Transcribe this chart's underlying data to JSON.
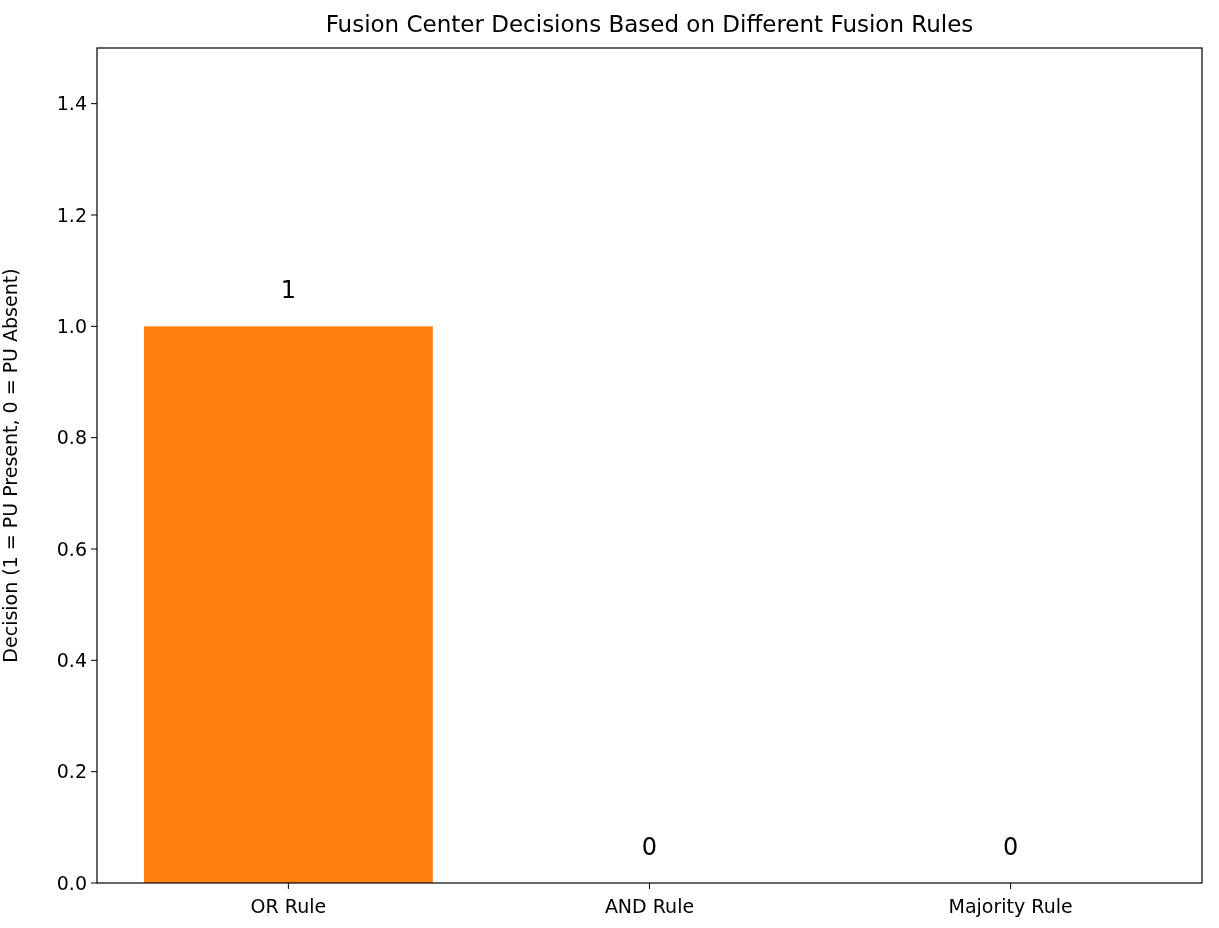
{
  "chart_data": {
    "type": "bar",
    "title": "Fusion Center Decisions Based on Different Fusion Rules",
    "ylabel": "Decision (1 = PU Present, 0 = PU Absent)",
    "categories": [
      "OR Rule",
      "AND Rule",
      "Majority Rule"
    ],
    "values": [
      1,
      0,
      0
    ],
    "color": "#ff7f0e",
    "data_labels": true,
    "ylim": [
      0,
      1.5
    ],
    "yticks": [
      {
        "value": 0,
        "label": "0.0"
      },
      {
        "value": 0.2,
        "label": "0.2"
      },
      {
        "value": 0.4,
        "label": "0.4"
      },
      {
        "value": 0.6,
        "label": "0.6"
      },
      {
        "value": 0.8,
        "label": "0.8"
      },
      {
        "value": 1,
        "label": "1.0"
      },
      {
        "value": 1.2,
        "label": "1.2"
      },
      {
        "value": 1.4,
        "label": "1.4"
      }
    ],
    "grid": false
  }
}
